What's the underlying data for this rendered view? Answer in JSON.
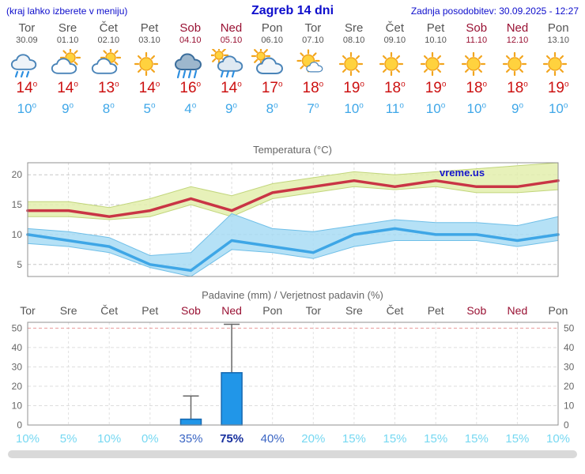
{
  "header": {
    "hint": "(kraj lahko izberete v meniju)",
    "title": "Zagreb 14 dni",
    "updated": "Zadnja posodobitev: 30.09.2025 - 12:27"
  },
  "units": {
    "degree": "o",
    "percent": "%"
  },
  "colors": {
    "header_blue": "#0d0dcc",
    "weekday": "#555555",
    "weekend": "#991133",
    "max_temp": "#cc1111",
    "min_temp": "#3fa7e8",
    "bar_fill": "#2196e8",
    "bar_edge": "#1668b0",
    "prob_low": "#76d8f2",
    "prob_mid": "#3b66c4",
    "prob_high": "#18309e"
  },
  "days": [
    {
      "name": "Tor",
      "date": "30.09",
      "weekend": false,
      "icon": "rain",
      "tmax": 14,
      "tmin": 10
    },
    {
      "name": "Sre",
      "date": "01.10",
      "weekend": false,
      "icon": "partly-cloudy",
      "tmax": 14,
      "tmin": 9
    },
    {
      "name": "Čet",
      "date": "02.10",
      "weekend": false,
      "icon": "partly-cloudy",
      "tmax": 13,
      "tmin": 8
    },
    {
      "name": "Pet",
      "date": "03.10",
      "weekend": false,
      "icon": "sunny",
      "tmax": 14,
      "tmin": 5
    },
    {
      "name": "Sob",
      "date": "04.10",
      "weekend": true,
      "icon": "heavy-rain",
      "tmax": 16,
      "tmin": 4
    },
    {
      "name": "Ned",
      "date": "05.10",
      "weekend": true,
      "icon": "rain-sun",
      "tmax": 14,
      "tmin": 9
    },
    {
      "name": "Pon",
      "date": "06.10",
      "weekend": false,
      "icon": "cloudy",
      "tmax": 17,
      "tmin": 8
    },
    {
      "name": "Tor",
      "date": "07.10",
      "weekend": false,
      "icon": "mostly-sunny",
      "tmax": 18,
      "tmin": 7
    },
    {
      "name": "Sre",
      "date": "08.10",
      "weekend": false,
      "icon": "sunny",
      "tmax": 19,
      "tmin": 10
    },
    {
      "name": "Čet",
      "date": "09.10",
      "weekend": false,
      "icon": "sunny",
      "tmax": 18,
      "tmin": 11
    },
    {
      "name": "Pet",
      "date": "10.10",
      "weekend": false,
      "icon": "sunny",
      "tmax": 19,
      "tmin": 10
    },
    {
      "name": "Sob",
      "date": "11.10",
      "weekend": true,
      "icon": "sunny",
      "tmax": 18,
      "tmin": 10
    },
    {
      "name": "Ned",
      "date": "12.10",
      "weekend": true,
      "icon": "sunny",
      "tmax": 18,
      "tmin": 9
    },
    {
      "name": "Pon",
      "date": "13.10",
      "weekend": false,
      "icon": "sunny",
      "tmax": 19,
      "tmin": 10
    }
  ],
  "chart_data": [
    {
      "type": "line",
      "title": "Temperatura (°C)",
      "watermark": "vreme.us",
      "ylim": [
        3,
        22
      ],
      "yticks": [
        5,
        10,
        15,
        20
      ],
      "series": [
        {
          "name": "max temperatura",
          "color": "#c93545",
          "values": [
            14,
            14,
            13,
            14,
            16,
            14,
            17,
            18,
            19,
            18,
            19,
            18,
            18,
            19
          ]
        },
        {
          "name": "min temperatura",
          "color": "#3ea6e6",
          "values": [
            10,
            9,
            8,
            5,
            4,
            9,
            8,
            7,
            10,
            11,
            10,
            10,
            9,
            10
          ]
        }
      ],
      "bands": [
        {
          "name": "max razpon",
          "color": "#e3efad",
          "edge": "#c2d67c",
          "upper": [
            15.5,
            15.5,
            14.5,
            16,
            18,
            16.5,
            18.5,
            19.5,
            20.5,
            20,
            20.5,
            21,
            21.5,
            22
          ],
          "lower": [
            13,
            13,
            12.5,
            13,
            15,
            13,
            16,
            17,
            18,
            17.5,
            18,
            17,
            17,
            17.5
          ]
        },
        {
          "name": "min razpon",
          "color": "#a8dcf5",
          "edge": "#6fbfe8",
          "upper": [
            11,
            10.5,
            9.5,
            6.5,
            7,
            13.5,
            11,
            10.5,
            11.5,
            12.5,
            12,
            12,
            11.5,
            13
          ],
          "lower": [
            8.5,
            8,
            7,
            4.5,
            3,
            7.5,
            7,
            6,
            8,
            9,
            9,
            9,
            8,
            9
          ]
        }
      ]
    },
    {
      "type": "bar",
      "title": "Padavine (mm) / Verjetnost padavin (%)",
      "ylim": [
        0,
        53
      ],
      "yticks": [
        0,
        10,
        20,
        30,
        40,
        50
      ],
      "categories": [
        "Tor",
        "Sre",
        "Čet",
        "Pet",
        "Sob",
        "Ned",
        "Pon",
        "Tor",
        "Sre",
        "Čet",
        "Pet",
        "Sob",
        "Ned",
        "Pon"
      ],
      "weekend": [
        false,
        false,
        false,
        false,
        true,
        true,
        false,
        false,
        false,
        false,
        false,
        true,
        true,
        false
      ],
      "values_mm": [
        0,
        0,
        0,
        0,
        3,
        27,
        0,
        0,
        0,
        0,
        0,
        0,
        0,
        0
      ],
      "whisker_high_mm": [
        0,
        0,
        0,
        0,
        15,
        52,
        0,
        0,
        0,
        0,
        0,
        0,
        0,
        0
      ],
      "probabilities_pct": [
        10,
        5,
        10,
        0,
        35,
        75,
        40,
        20,
        15,
        15,
        15,
        15,
        15,
        10
      ]
    }
  ]
}
